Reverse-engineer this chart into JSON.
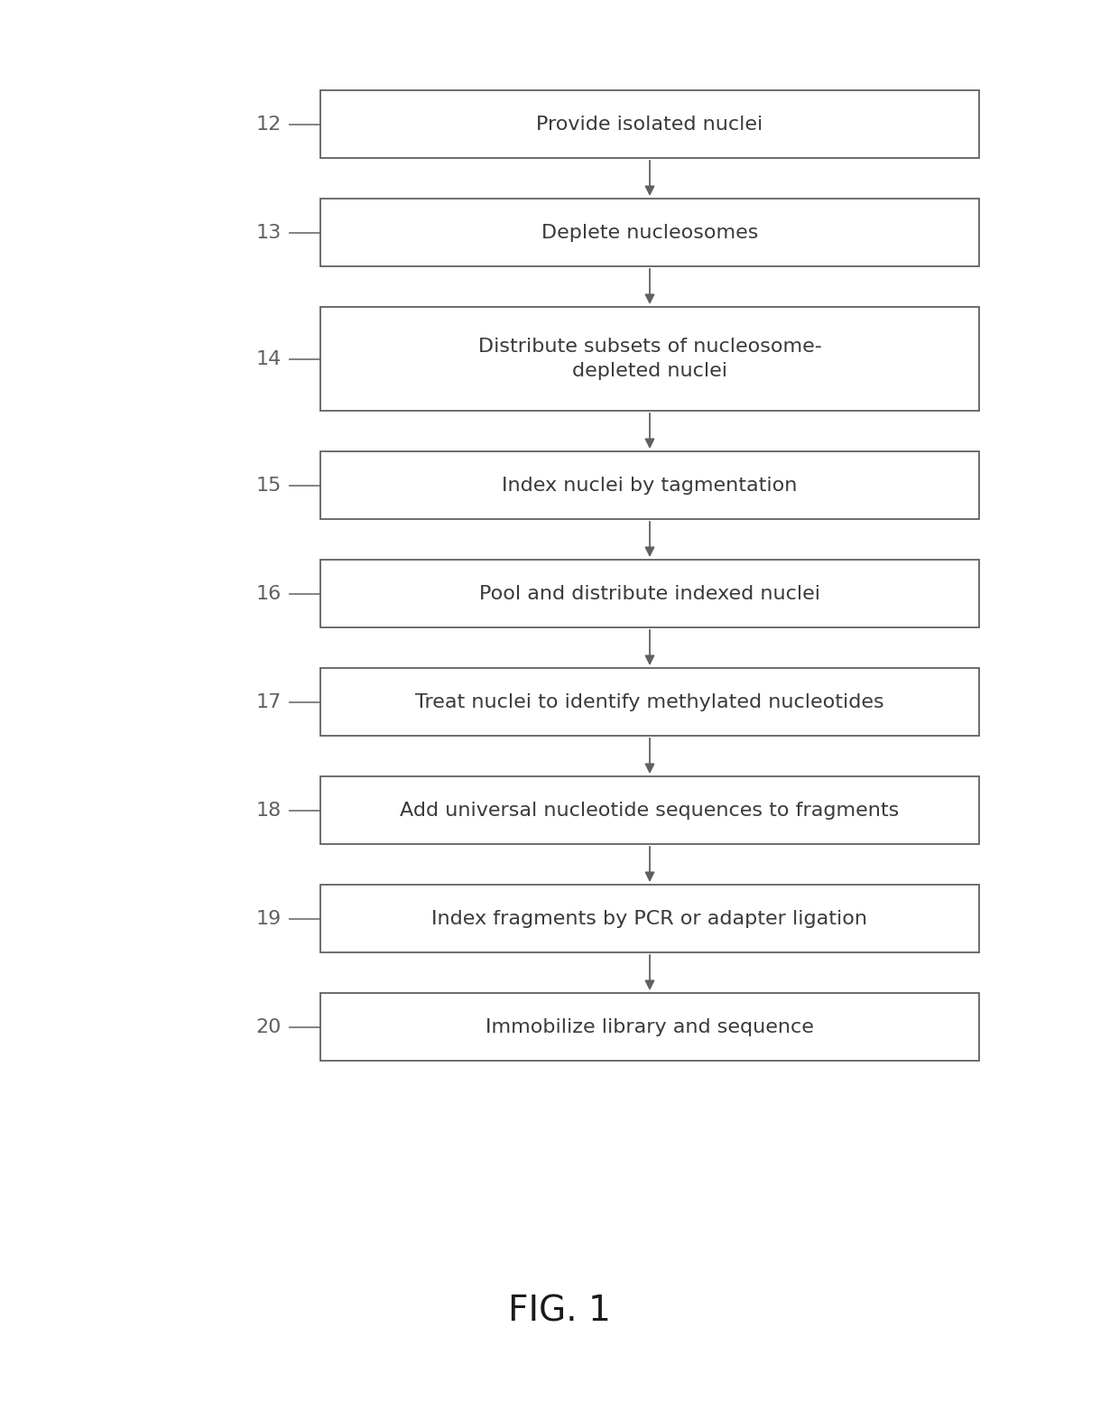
{
  "steps": [
    {
      "id": 12,
      "text": "Provide isolated nuclei",
      "multiline": false
    },
    {
      "id": 13,
      "text": "Deplete nucleosomes",
      "multiline": false
    },
    {
      "id": 14,
      "text": "Distribute subsets of nucleosome-\ndepleted nuclei",
      "multiline": true
    },
    {
      "id": 15,
      "text": "Index nuclei by tagmentation",
      "multiline": false
    },
    {
      "id": 16,
      "text": "Pool and distribute indexed nuclei",
      "multiline": false
    },
    {
      "id": 17,
      "text": "Treat nuclei to identify methylated nucleotides",
      "multiline": false
    },
    {
      "id": 18,
      "text": "Add universal nucleotide sequences to fragments",
      "multiline": false
    },
    {
      "id": 19,
      "text": "Index fragments by PCR or adapter ligation",
      "multiline": false
    },
    {
      "id": 20,
      "text": "Immobilize library and sequence",
      "multiline": false
    }
  ],
  "figure_label": "FIG. 1",
  "bg_color": "#ffffff",
  "box_edge_color": "#606060",
  "text_color": "#3a3a3a",
  "arrow_color": "#606060",
  "label_color": "#606060",
  "fig_width": 12.4,
  "fig_height": 15.73,
  "dpi": 100
}
